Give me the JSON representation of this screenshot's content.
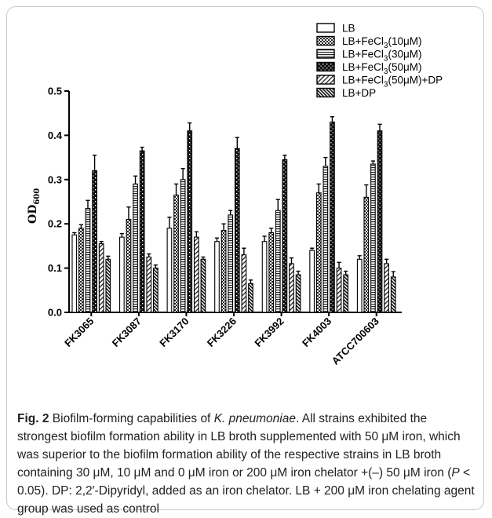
{
  "chart_data": {
    "type": "bar",
    "categories": [
      "FK3065",
      "FK3087",
      "FK3170",
      "FK3226",
      "FK3992",
      "FK4003",
      "ATCC700603"
    ],
    "series": [
      {
        "name": "LB",
        "values": [
          0.175,
          0.17,
          0.19,
          0.16,
          0.16,
          0.14,
          0.12
        ],
        "errors": [
          0.005,
          0.008,
          0.025,
          0.008,
          0.012,
          0.005,
          0.008
        ]
      },
      {
        "name": "LB+FeCl3(10μM)",
        "values": [
          0.19,
          0.21,
          0.265,
          0.185,
          0.18,
          0.27,
          0.26
        ],
        "errors": [
          0.008,
          0.028,
          0.025,
          0.015,
          0.01,
          0.02,
          0.028
        ]
      },
      {
        "name": "LB+FeCl3(30μM)",
        "values": [
          0.235,
          0.29,
          0.3,
          0.22,
          0.23,
          0.33,
          0.335
        ],
        "errors": [
          0.018,
          0.018,
          0.025,
          0.01,
          0.025,
          0.02,
          0.007
        ]
      },
      {
        "name": "LB+FeCl3(50μM)",
        "values": [
          0.32,
          0.365,
          0.41,
          0.37,
          0.345,
          0.43,
          0.41
        ],
        "errors": [
          0.035,
          0.008,
          0.018,
          0.025,
          0.01,
          0.012,
          0.015
        ]
      },
      {
        "name": "LB+FeCl3(50μM)+DP",
        "values": [
          0.155,
          0.125,
          0.17,
          0.13,
          0.11,
          0.1,
          0.11
        ],
        "errors": [
          0.005,
          0.007,
          0.012,
          0.015,
          0.013,
          0.013,
          0.01
        ]
      },
      {
        "name": "LB+DP",
        "values": [
          0.12,
          0.1,
          0.12,
          0.065,
          0.085,
          0.085,
          0.08
        ],
        "errors": [
          0.007,
          0.007,
          0.005,
          0.008,
          0.008,
          0.008,
          0.012
        ]
      }
    ],
    "legend_display": [
      {
        "pre": "LB",
        "sub": "",
        "post": ""
      },
      {
        "pre": "LB+FeCl",
        "sub": "3",
        "post": "(10μM)"
      },
      {
        "pre": "LB+FeCl",
        "sub": "3",
        "post": "(30μM)"
      },
      {
        "pre": "LB+FeCl",
        "sub": "3",
        "post": "(50μM)"
      },
      {
        "pre": "LB+FeCl",
        "sub": "3",
        "post": "(50μM)+DP"
      },
      {
        "pre": "LB+DP",
        "sub": "",
        "post": ""
      }
    ],
    "ylabel": {
      "main": "OD",
      "sub": "600"
    },
    "ylim": [
      0,
      0.5
    ],
    "yticks": [
      "0.0",
      "0.1",
      "0.2",
      "0.3",
      "0.4",
      "0.5"
    ],
    "legend_position": "top-right",
    "grid": false
  },
  "caption": {
    "fig_label": "Fig. 2",
    "t1": " Biofilm-forming capabilities of ",
    "species": "K. pneumoniae",
    "t2": ". All strains exhibited the strongest biofilm formation ability in LB broth supplemented with 50 μM iron, which was superior to the biofilm formation ability of the respective strains in LB broth containing 30 μM, 10 μM and 0 μM iron or 200 μM iron chelator +(–) 50 μM iron (",
    "p": "P",
    "t3": " < 0.05). DP: 2,2′-Dipyridyl, added as an iron chelator. LB + 200 μM iron chelating agent group was used as control"
  }
}
